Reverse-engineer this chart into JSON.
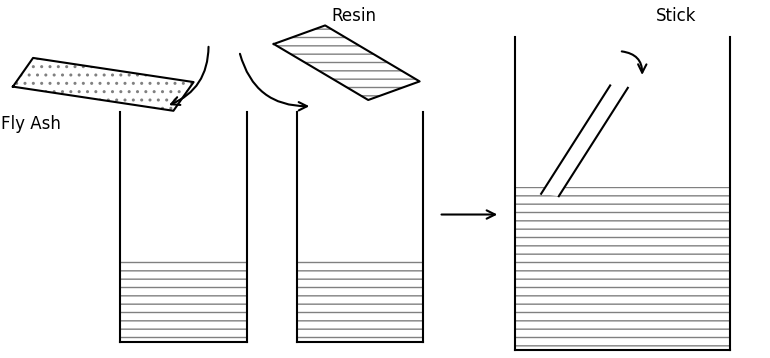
{
  "background_color": "#ffffff",
  "fig_width": 7.7,
  "fig_height": 3.58,
  "dpi": 100,
  "label_fly_ash": "Fly Ash",
  "label_resin": "Resin",
  "label_stick": "Stick"
}
